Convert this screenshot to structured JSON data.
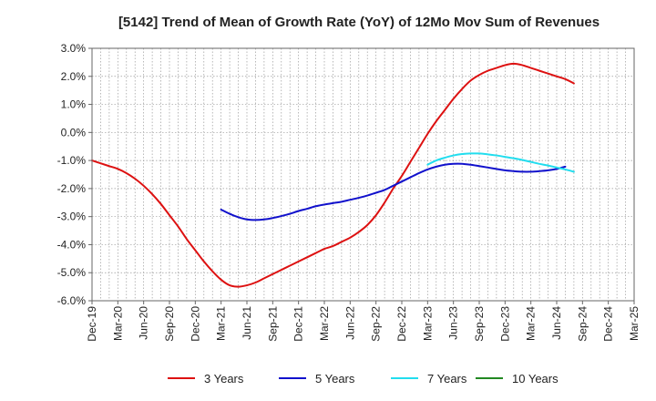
{
  "chart_data": {
    "type": "line",
    "title": "[5142]  Trend of Mean of Growth Rate (YoY) of 12Mo Mov Sum of Revenues",
    "xlabel": "",
    "ylabel": "",
    "ylim": [
      -6.0,
      3.0
    ],
    "y_ticks": [
      "3.0%",
      "2.0%",
      "1.0%",
      "0.0%",
      "-1.0%",
      "-2.0%",
      "-3.0%",
      "-4.0%",
      "-5.0%",
      "-6.0%"
    ],
    "y_tick_values": [
      3,
      2,
      1,
      0,
      -1,
      -2,
      -3,
      -4,
      -5,
      -6
    ],
    "x_ticks": [
      "Dec-19",
      "Mar-20",
      "Jun-20",
      "Sep-20",
      "Dec-20",
      "Mar-21",
      "Jun-21",
      "Sep-21",
      "Dec-21",
      "Mar-22",
      "Jun-22",
      "Sep-22",
      "Dec-22",
      "Mar-23",
      "Jun-23",
      "Sep-23",
      "Dec-23",
      "Mar-24",
      "Jun-24",
      "Sep-24",
      "Dec-24",
      "Mar-25"
    ],
    "grid": true,
    "legend_position": "bottom",
    "series": [
      {
        "name": "3 Years",
        "color": "#dd1111",
        "start_month": 0,
        "values": [
          -1.0,
          -1.1,
          -1.2,
          -1.3,
          -1.45,
          -1.65,
          -1.9,
          -2.2,
          -2.55,
          -2.95,
          -3.35,
          -3.8,
          -4.2,
          -4.6,
          -4.95,
          -5.25,
          -5.45,
          -5.5,
          -5.45,
          -5.35,
          -5.2,
          -5.05,
          -4.9,
          -4.75,
          -4.6,
          -4.45,
          -4.3,
          -4.15,
          -4.05,
          -3.9,
          -3.75,
          -3.55,
          -3.3,
          -2.95,
          -2.5,
          -2.0,
          -1.55,
          -1.05,
          -0.55,
          -0.05,
          0.4,
          0.8,
          1.2,
          1.55,
          1.85,
          2.05,
          2.2,
          2.3,
          2.4,
          2.45,
          2.4,
          2.3,
          2.2,
          2.1,
          2.0,
          1.9,
          1.75
        ]
      },
      {
        "name": "5 Years",
        "color": "#1111cc",
        "start_month": 15,
        "values": [
          -2.75,
          -2.9,
          -3.02,
          -3.1,
          -3.12,
          -3.1,
          -3.05,
          -2.98,
          -2.9,
          -2.8,
          -2.72,
          -2.63,
          -2.57,
          -2.52,
          -2.47,
          -2.4,
          -2.33,
          -2.25,
          -2.15,
          -2.05,
          -1.9,
          -1.75,
          -1.6,
          -1.45,
          -1.32,
          -1.22,
          -1.15,
          -1.12,
          -1.12,
          -1.15,
          -1.2,
          -1.25,
          -1.3,
          -1.35,
          -1.38,
          -1.4,
          -1.4,
          -1.38,
          -1.35,
          -1.3,
          -1.22
        ]
      },
      {
        "name": "7 Years",
        "color": "#22ddee",
        "start_month": 39,
        "values": [
          -1.15,
          -1.0,
          -0.9,
          -0.82,
          -0.77,
          -0.75,
          -0.75,
          -0.78,
          -0.82,
          -0.87,
          -0.92,
          -0.98,
          -1.05,
          -1.12,
          -1.18,
          -1.25,
          -1.32,
          -1.4
        ]
      },
      {
        "name": "10 Years",
        "color": "#228822",
        "start_month": 0,
        "values": []
      }
    ]
  }
}
